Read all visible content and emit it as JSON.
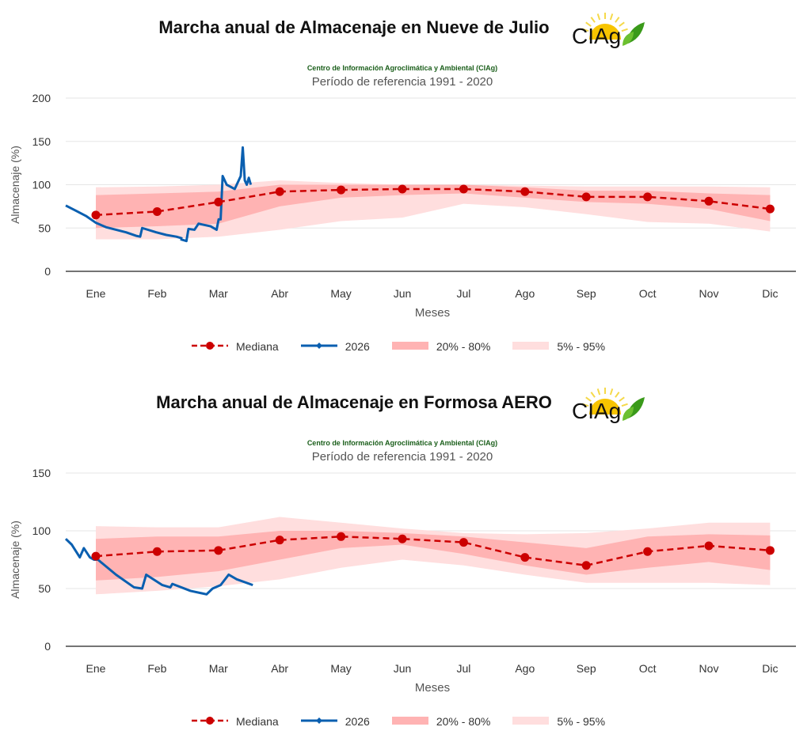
{
  "colors": {
    "median": "#cc0000",
    "series": "#0a5fb0",
    "band_inner": "#ffb3b3",
    "band_outer": "#ffdede",
    "grid": "#e6e6e6"
  },
  "logo_text": "CIAg",
  "chart_data": [
    {
      "type": "line",
      "title": "Marcha anual de Almacenaje en Nueve de Julio",
      "subtitle": "Centro de Información Agroclimática y Ambiental (CIAg)",
      "reference": "Período de referencia 1991 - 2020",
      "xlabel": "Meses",
      "ylabel": "Almacenaje (%)",
      "ylim": [
        0,
        200
      ],
      "yticks": [
        0,
        50,
        100,
        150,
        200
      ],
      "categories": [
        "Ene",
        "Feb",
        "Mar",
        "Abr",
        "May",
        "Jun",
        "Jul",
        "Ago",
        "Sep",
        "Oct",
        "Nov",
        "Dic"
      ],
      "legend": [
        "Mediana",
        "2026",
        "20% - 80%",
        "5% - 95%"
      ],
      "legend_position": "bottom",
      "median": [
        65,
        69,
        80,
        92,
        94,
        95,
        95,
        92,
        86,
        86,
        81,
        72
      ],
      "p5": [
        37,
        37,
        40,
        48,
        58,
        62,
        78,
        74,
        66,
        57,
        55,
        46
      ],
      "p20": [
        50,
        52,
        55,
        75,
        85,
        88,
        90,
        85,
        80,
        78,
        72,
        58
      ],
      "p80": [
        88,
        90,
        92,
        100,
        100,
        100,
        100,
        97,
        93,
        93,
        90,
        88
      ],
      "p95": [
        97,
        98,
        100,
        105,
        102,
        100,
        100,
        99,
        98,
        98,
        98,
        97
      ],
      "series_2026": [
        [
          0,
          76
        ],
        [
          5,
          70
        ],
        [
          10,
          64
        ],
        [
          15,
          56
        ],
        [
          20,
          51
        ],
        [
          25,
          48
        ],
        [
          30,
          45
        ],
        [
          35,
          41
        ],
        [
          37,
          40
        ],
        [
          38,
          50
        ],
        [
          45,
          45
        ],
        [
          50,
          42
        ],
        [
          55,
          40
        ],
        [
          58,
          38
        ],
        null,
        [
          57,
          37
        ],
        [
          60,
          35
        ],
        [
          61,
          49
        ],
        [
          64,
          48
        ],
        [
          66,
          55
        ],
        [
          72,
          52
        ],
        [
          75,
          48
        ],
        [
          76,
          60
        ],
        [
          77,
          60
        ],
        [
          78,
          110
        ],
        [
          80,
          100
        ],
        [
          84,
          95
        ],
        [
          87,
          110
        ],
        [
          88,
          143
        ],
        [
          89,
          105
        ],
        [
          90,
          100
        ],
        [
          91,
          108
        ],
        [
          92,
          100
        ]
      ]
    },
    {
      "type": "line",
      "title": "Marcha anual de Almacenaje en Formosa AERO",
      "subtitle": "Centro de Información Agroclimática y Ambiental (CIAg)",
      "reference": "Período de referencia 1991 - 2020",
      "xlabel": "Meses",
      "ylabel": "Almacenaje (%)",
      "ylim": [
        0,
        150
      ],
      "yticks": [
        0,
        50,
        100,
        150
      ],
      "categories": [
        "Ene",
        "Feb",
        "Mar",
        "Abr",
        "May",
        "Jun",
        "Jul",
        "Ago",
        "Sep",
        "Oct",
        "Nov",
        "Dic"
      ],
      "legend": [
        "Mediana",
        "2026",
        "20% - 80%",
        "5% - 95%"
      ],
      "legend_position": "bottom",
      "median": [
        78,
        82,
        83,
        92,
        95,
        93,
        90,
        77,
        70,
        82,
        87,
        83
      ],
      "p5": [
        45,
        48,
        52,
        58,
        68,
        75,
        70,
        62,
        55,
        55,
        55,
        53
      ],
      "p20": [
        57,
        60,
        65,
        75,
        85,
        88,
        80,
        70,
        62,
        68,
        73,
        66
      ],
      "p80": [
        93,
        95,
        95,
        100,
        100,
        98,
        95,
        90,
        85,
        95,
        97,
        96
      ],
      "p95": [
        104,
        103,
        103,
        112,
        107,
        102,
        98,
        97,
        98,
        102,
        107,
        107
      ],
      "series_2026": [
        [
          0,
          93
        ],
        [
          3,
          88
        ],
        [
          7,
          77
        ],
        [
          9,
          85
        ],
        [
          12,
          77
        ],
        [
          14,
          75
        ],
        [
          16,
          75
        ],
        [
          25,
          62
        ],
        [
          34,
          51
        ],
        [
          38,
          50
        ],
        [
          40,
          62
        ],
        [
          48,
          53
        ],
        [
          52,
          51
        ],
        [
          53,
          54
        ],
        [
          62,
          48
        ],
        [
          70,
          45
        ],
        [
          73,
          50
        ],
        [
          77,
          53
        ],
        [
          81,
          62
        ],
        [
          85,
          58
        ],
        [
          93,
          53
        ]
      ]
    }
  ]
}
